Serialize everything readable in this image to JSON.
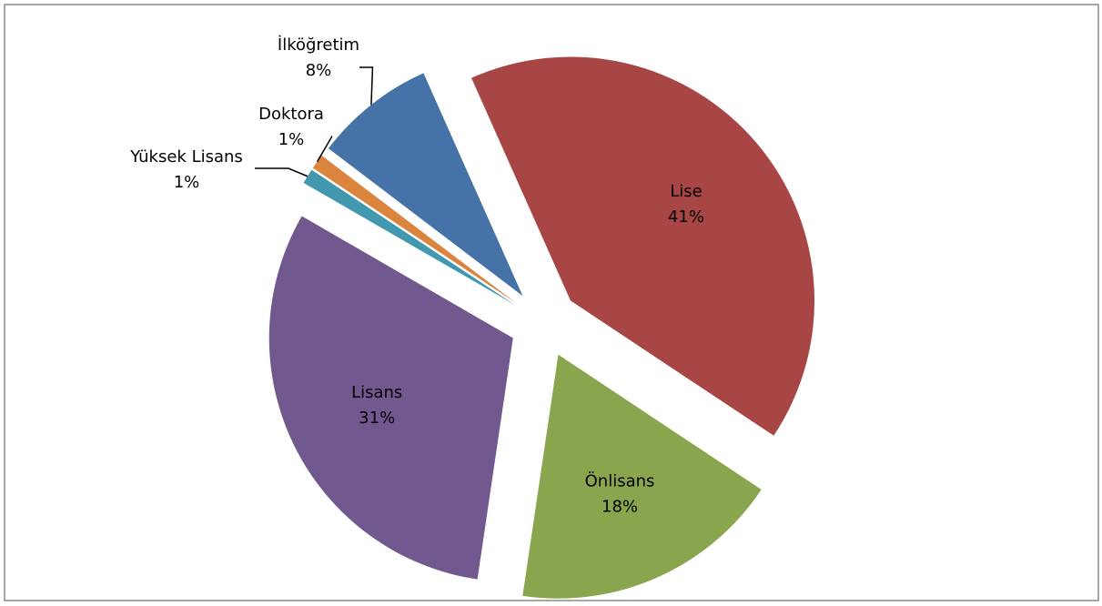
{
  "chart_data": {
    "type": "pie",
    "categories": [
      "Lise",
      "Önlisans",
      "Lisans",
      "Yüksek Lisans",
      "Doktora",
      "İlköğretim"
    ],
    "values": [
      41,
      18,
      31,
      1,
      1,
      8
    ],
    "value_labels": [
      "41%",
      "18%",
      "31%",
      "1%",
      "1%",
      "8%"
    ],
    "colors": [
      "#a84645",
      "#89a54e",
      "#71588f",
      "#4198af",
      "#db843d",
      "#4572a7"
    ],
    "exploded": true
  }
}
